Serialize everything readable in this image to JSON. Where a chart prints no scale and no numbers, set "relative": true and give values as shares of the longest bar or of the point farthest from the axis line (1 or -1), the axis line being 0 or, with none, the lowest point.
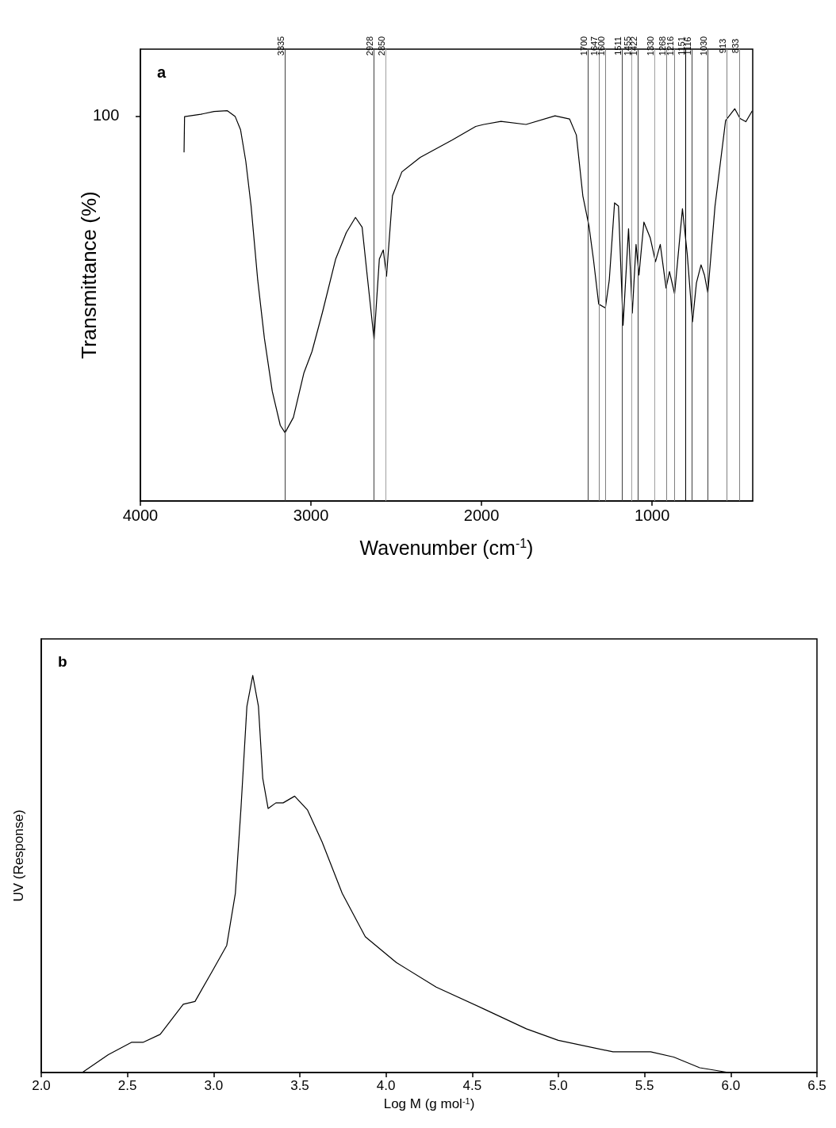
{
  "chart_data": [
    {
      "type": "line",
      "title": "a",
      "xlabel": "Wavenumber (cm$^{-1}$)",
      "ylabel": "Transmittance (%)",
      "relative": true,
      "marker": "none",
      "xlim": [
        4000,
        410
      ],
      "xticks": [
        4000,
        3000,
        2000,
        1000
      ],
      "annotations": [
        "100",
        "3335",
        "2928",
        "2850",
        "1700",
        "1647",
        "1600",
        "1511",
        "1455",
        "1422",
        "1330",
        "1268",
        "1216",
        "1151",
        "1116",
        "1030",
        "913",
        "833"
      ],
      "x": [
        3744,
        3741,
        3645,
        3568,
        3490,
        3444,
        3413,
        3382,
        3351,
        3312,
        3273,
        3227,
        3180,
        3152,
        3103,
        3041,
        2994,
        2932,
        2855,
        2793,
        2739,
        2700,
        2669,
        2630,
        2599,
        2576,
        2557,
        2522,
        2467,
        2359,
        2173,
        2034,
        1987,
        1886,
        1739,
        1569,
        1484,
        1444,
        1406,
        1370,
        1344,
        1313,
        1274,
        1251,
        1220,
        1197,
        1170,
        1138,
        1116,
        1094,
        1077,
        1048,
        1011,
        980,
        952,
        918,
        898,
        868,
        822,
        794,
        763,
        740,
        713,
        693,
        673,
        631,
        569,
        515,
        484,
        450,
        414
      ],
      "series": [
        {
          "color": "#000000",
          "values": [
            0.89,
            0.98,
            0.986,
            0.993,
            0.995,
            0.98,
            0.947,
            0.866,
            0.752,
            0.563,
            0.415,
            0.28,
            0.193,
            0.174,
            0.213,
            0.327,
            0.381,
            0.482,
            0.617,
            0.684,
            0.723,
            0.698,
            0.57,
            0.412,
            0.617,
            0.64,
            0.573,
            0.778,
            0.839,
            0.876,
            0.92,
            0.955,
            0.96,
            0.968,
            0.96,
            0.982,
            0.974,
            0.933,
            0.778,
            0.701,
            0.617,
            0.502,
            0.492,
            0.563,
            0.76,
            0.752,
            0.448,
            0.694,
            0.479,
            0.654,
            0.576,
            0.711,
            0.671,
            0.61,
            0.654,
            0.543,
            0.585,
            0.528,
            0.745,
            0.63,
            0.457,
            0.556,
            0.602,
            0.576,
            0.531,
            0.752,
            0.97,
            1.0,
            0.975,
            0.967,
            0.994
          ]
        }
      ],
      "ref_lines": [
        {
          "axis": "x",
          "value": 3152,
          "color": "#404040"
        },
        {
          "axis": "x",
          "value": 2632,
          "color": "#404040"
        },
        {
          "axis": "x",
          "value": 2560,
          "color": "#a0a0a0"
        },
        {
          "axis": "x",
          "value": 1375,
          "color": "#404040"
        },
        {
          "axis": "x",
          "value": 1313,
          "color": "#808080"
        },
        {
          "axis": "x",
          "value": 1272,
          "color": "#808080"
        },
        {
          "axis": "x",
          "value": 1175,
          "color": "#404040"
        },
        {
          "axis": "x",
          "value": 1119,
          "color": "#a0a0a0"
        },
        {
          "axis": "x",
          "value": 1084,
          "color": "#404040"
        },
        {
          "axis": "x",
          "value": 984,
          "color": "#a0a0a0"
        },
        {
          "axis": "x",
          "value": 914,
          "color": "#808080"
        },
        {
          "axis": "x",
          "value": 870,
          "color": "#808080"
        },
        {
          "axis": "x",
          "value": 805,
          "color": "#000000"
        },
        {
          "axis": "x",
          "value": 766,
          "color": "#404040"
        },
        {
          "axis": "x",
          "value": 673,
          "color": "#404040"
        },
        {
          "axis": "x",
          "value": 561,
          "color": "#808080"
        },
        {
          "axis": "x",
          "value": 487,
          "color": "#808080"
        }
      ]
    },
    {
      "type": "line",
      "title": "b",
      "xlabel": "Log M (g mol$^{-1}$)",
      "ylabel": "UV (Response)",
      "relative": true,
      "marker": "none",
      "xlim": [
        2.0,
        6.5
      ],
      "xticks": [
        {
          "value": 2,
          "label": "2.0"
        },
        2.5,
        {
          "value": 3,
          "label": "3.0"
        },
        3.5,
        {
          "value": 4,
          "label": "4.0"
        },
        4.5,
        {
          "value": 5,
          "label": "5.0"
        },
        5.5,
        {
          "value": 6,
          "label": "6.0"
        },
        6.5
      ],
      "x": [
        2.238,
        2.389,
        2.523,
        2.59,
        2.69,
        2.824,
        2.892,
        2.992,
        3.076,
        3.126,
        3.159,
        3.193,
        3.227,
        3.26,
        3.285,
        3.316,
        3.361,
        3.403,
        3.47,
        3.545,
        3.629,
        3.746,
        3.88,
        4.06,
        4.291,
        4.563,
        4.814,
        4.999,
        5.317,
        5.535,
        5.669,
        5.82,
        5.988
      ],
      "series": [
        {
          "color": "#000000",
          "values": [
            0,
            0.045,
            0.076,
            0.076,
            0.096,
            0.172,
            0.179,
            0.255,
            0.32,
            0.451,
            0.668,
            0.922,
            1.0,
            0.922,
            0.741,
            0.665,
            0.679,
            0.679,
            0.696,
            0.661,
            0.581,
            0.451,
            0.342,
            0.277,
            0.215,
            0.161,
            0.11,
            0.081,
            0.052,
            0.052,
            0.039,
            0.012,
            0
          ]
        }
      ]
    }
  ]
}
